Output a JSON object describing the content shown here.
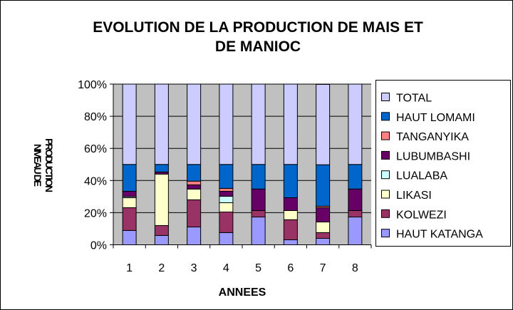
{
  "chart_data": {
    "type": "bar",
    "stacked": "percent",
    "title": [
      "EVOLUTION DE LA PRODUCTION DE MAIS ET",
      "DE MANIOC"
    ],
    "xlabel": "ANNEES",
    "ylabel": [
      "NIVEAU DE",
      "PRODUCTION"
    ],
    "ylim": [
      0,
      100
    ],
    "yticks": [
      "0%",
      "20%",
      "40%",
      "60%",
      "80%",
      "100%"
    ],
    "grid": true,
    "legend_position": "right",
    "plot_background": "#C0C0C0",
    "categories": [
      "1",
      "2",
      "3",
      "4",
      "5",
      "6",
      "7",
      "8"
    ],
    "series": [
      {
        "name": "HAUT KATANGA",
        "color": "#9999FF",
        "values": [
          8.9,
          5.8,
          11.1,
          7.6,
          17.3,
          3.1,
          4.0,
          17.3
        ]
      },
      {
        "name": "KOLWEZI",
        "color": "#993366",
        "values": [
          14.2,
          6.2,
          16.9,
          12.8,
          4.0,
          12.5,
          3.6,
          4.0
        ]
      },
      {
        "name": "LIKASI",
        "color": "#FFFFCC",
        "values": [
          6.2,
          32.0,
          6.7,
          5.8,
          0.0,
          5.7,
          6.6,
          0.0
        ]
      },
      {
        "name": "LUALABA",
        "color": "#CCFFFF",
        "values": [
          0.7,
          0.0,
          0.0,
          4.0,
          0.0,
          0.0,
          0.0,
          0.0
        ]
      },
      {
        "name": "LUBUMBASHI",
        "color": "#660066",
        "values": [
          3.3,
          1.3,
          2.6,
          3.1,
          13.4,
          8.0,
          8.9,
          13.4
        ]
      },
      {
        "name": "TANGANYIKA",
        "color": "#FF8080",
        "values": [
          0.0,
          0.0,
          2.3,
          1.8,
          0.0,
          0.0,
          0.9,
          0.0
        ]
      },
      {
        "name": "HAUT LOMAMI",
        "color": "#0066CC",
        "values": [
          16.7,
          4.7,
          10.4,
          14.9,
          15.3,
          20.7,
          25.8,
          15.3
        ]
      },
      {
        "name": "TOTAL",
        "color": "#CCCCFF",
        "values": [
          50,
          50,
          50,
          50,
          50,
          50,
          50,
          50
        ]
      }
    ]
  }
}
